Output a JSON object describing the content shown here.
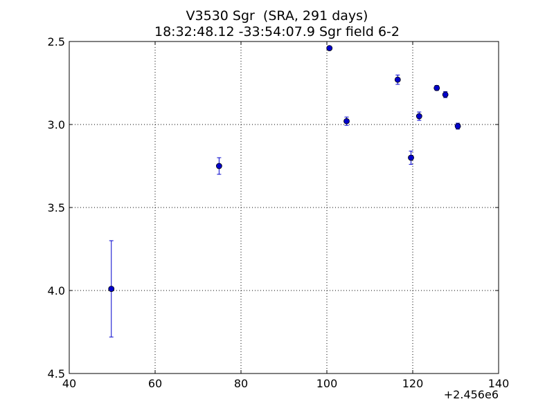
{
  "chart_data": {
    "type": "scatter",
    "title": "V3530 Sgr  (SRA, 291 days)",
    "subtitle": "18:32:48.12 -33:54:07.9 Sgr field 6-2",
    "xlabel": "",
    "ylabel": "",
    "x_offset_label": "+2.456e6",
    "xlim": [
      40,
      140
    ],
    "ylim": [
      4.5,
      2.5
    ],
    "y_inverted": true,
    "grid": true,
    "x_ticks": [
      "40",
      "60",
      "80",
      "100",
      "120",
      "140"
    ],
    "y_ticks": [
      "2.5",
      "3.0",
      "3.5",
      "4.0",
      "4.5"
    ],
    "marker_color": "#0000cc",
    "points": [
      {
        "x": 49.8,
        "y": 3.99,
        "err": 0.29
      },
      {
        "x": 74.9,
        "y": 3.25,
        "err": 0.05
      },
      {
        "x": 100.6,
        "y": 2.54,
        "err": 0.01
      },
      {
        "x": 104.6,
        "y": 2.98,
        "err": 0.025
      },
      {
        "x": 116.5,
        "y": 2.73,
        "err": 0.028
      },
      {
        "x": 119.6,
        "y": 3.2,
        "err": 0.04
      },
      {
        "x": 121.5,
        "y": 2.95,
        "err": 0.025
      },
      {
        "x": 125.6,
        "y": 2.78,
        "err": 0.015
      },
      {
        "x": 127.6,
        "y": 2.82,
        "err": 0.018
      },
      {
        "x": 130.5,
        "y": 3.01,
        "err": 0.018
      }
    ]
  }
}
